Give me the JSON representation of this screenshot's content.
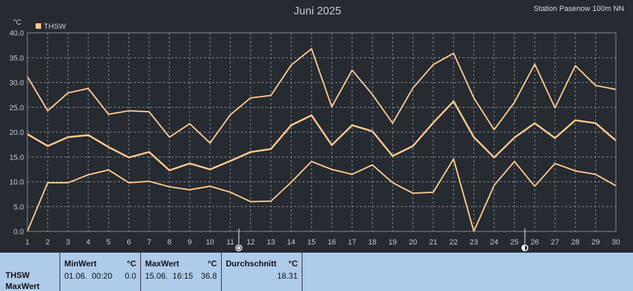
{
  "header": {
    "title": "Juni 2025",
    "station": "Station Pasenow 100m NN",
    "unit": "°C"
  },
  "chart_data": {
    "type": "line",
    "title": "Juni 2025",
    "ylabel": "°C",
    "xlabel": "",
    "ylim": [
      0,
      40
    ],
    "yticks": [
      "0.0",
      "5.0",
      "10.0",
      "15.0",
      "20.0",
      "25.0",
      "30.0",
      "35.0",
      "40.0"
    ],
    "x": [
      1,
      2,
      3,
      4,
      5,
      6,
      7,
      8,
      9,
      10,
      11,
      12,
      13,
      14,
      15,
      16,
      17,
      18,
      19,
      20,
      21,
      22,
      23,
      24,
      25,
      26,
      27,
      28,
      29,
      30
    ],
    "grid": true,
    "legend": "top-left",
    "color": "#ffc98f",
    "series": [
      {
        "name": "THSW",
        "role": "max",
        "values": [
          31.2,
          24.3,
          27.9,
          28.8,
          23.6,
          24.3,
          24.1,
          19.0,
          21.7,
          17.8,
          23.5,
          26.9,
          27.4,
          33.5,
          36.8,
          25.1,
          32.5,
          27.6,
          21.8,
          28.9,
          33.6,
          35.9,
          26.9,
          20.5,
          26.0,
          33.7,
          24.9,
          33.4,
          29.4,
          28.6
        ]
      },
      {
        "name": "",
        "role": "avg",
        "values": [
          19.6,
          17.2,
          19.0,
          19.4,
          17.0,
          14.9,
          16.0,
          12.3,
          13.7,
          12.5,
          14.2,
          16.0,
          16.6,
          21.4,
          23.4,
          17.4,
          21.4,
          20.2,
          15.2,
          17.2,
          21.9,
          26.2,
          19.0,
          14.9,
          18.9,
          21.8,
          18.8,
          22.4,
          21.8,
          18.3
        ]
      },
      {
        "name": "",
        "role": "min",
        "values": [
          0.0,
          9.8,
          9.8,
          11.4,
          12.4,
          9.8,
          10.1,
          9.0,
          8.4,
          9.1,
          7.9,
          6.0,
          6.1,
          9.9,
          14.1,
          12.5,
          11.5,
          13.4,
          9.8,
          7.7,
          7.9,
          14.6,
          0.0,
          9.3,
          14.1,
          9.1,
          13.7,
          12.2,
          11.5,
          9.2
        ]
      }
    ]
  },
  "stats": {
    "label_line1": "THSW",
    "label_line2": "MaxWert",
    "min": {
      "header": "MinWert",
      "unit": "°C",
      "date": "01.06.  00:20",
      "value": "0.0"
    },
    "max": {
      "header": "MaxWert",
      "unit": "°C",
      "date": "15.06.  16:15",
      "value": "36.8"
    },
    "avg": {
      "header": "Durchschnitt",
      "unit": "°C",
      "value": "18.31"
    }
  }
}
